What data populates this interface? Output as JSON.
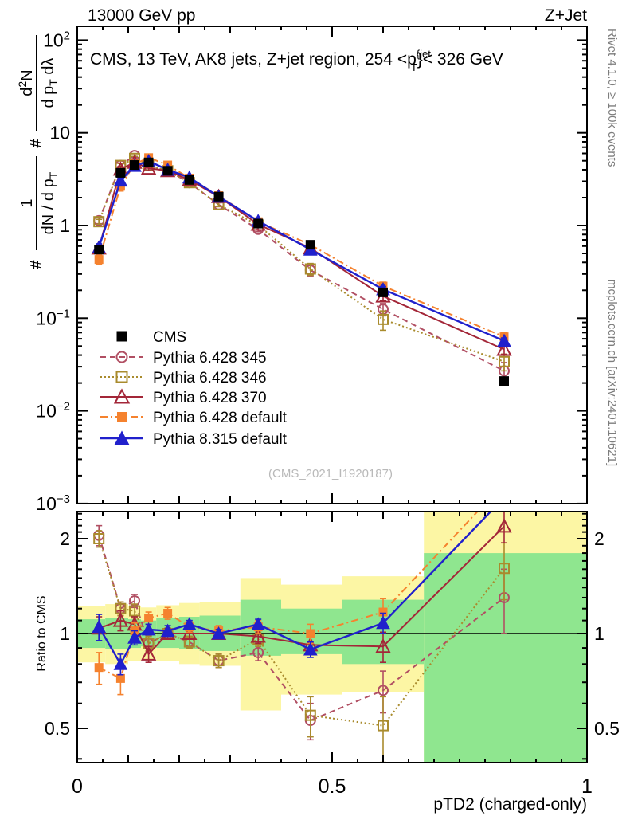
{
  "header": {
    "left": "13000 GeV pp",
    "right": "Z+Jet"
  },
  "panel_title": {
    "prefix": "CMS, 13 TeV, AK8 jets, Z+jet region, 254 <p",
    "sup": "{jet",
    "sub": "T",
    "suffix": "}< 326 GeV"
  },
  "watermark": "(CMS_2021_I1920187)",
  "right_margin": {
    "top": "Rivet 4.1.0, ≥ 100k events",
    "bottom": "mcplots.cern.ch [arXiv:2401.10621]"
  },
  "y_axis_label": {
    "hash1": "#",
    "f1_num": "1",
    "f1_den_main": "dN / d p",
    "f1_den_sub": "T",
    "hash2": "#",
    "f2_num_d": "d",
    "f2_num_exp": "2",
    "f2_num_N": "N",
    "f2_den_main": "d p",
    "f2_den_sub": "T",
    "f2_den_tail": " dλ"
  },
  "main_y_ticks": [
    {
      "v": 100,
      "mant": "10",
      "exp": "2"
    },
    {
      "v": 10,
      "mant": "10",
      "exp": ""
    },
    {
      "v": 1,
      "mant": "1",
      "exp": ""
    },
    {
      "v": 0.1,
      "mant": "10",
      "exp": "−1"
    },
    {
      "v": 0.01,
      "mant": "10",
      "exp": "−2"
    },
    {
      "v": 0.001,
      "mant": "10",
      "exp": "−3"
    }
  ],
  "ratio_y_ticks": [
    {
      "v": 0.5,
      "label": "0.5"
    },
    {
      "v": 1,
      "label": "1"
    },
    {
      "v": 2,
      "label": "2"
    }
  ],
  "x_ticks": [
    {
      "v": 0,
      "label": "0"
    },
    {
      "v": 0.5,
      "label": "0.5"
    },
    {
      "v": 1,
      "label": "1"
    }
  ],
  "chart_data": {
    "type": "line",
    "title": "CMS, 13 TeV, AK8 jets, Z+jet region, 254 < pT{jet} < 326 GeV",
    "xlabel": "pTD2 (charged-only)",
    "ylabel": "# 1/(dN/dpT) # d2N/(dpT dλ)",
    "ratio_ylabel": "Ratio to CMS",
    "xlim": [
      0,
      1
    ],
    "ylim_main": [
      0.001,
      141
    ],
    "ylim_ratio": [
      0.39,
      2.44
    ],
    "x": [
      0.0425,
      0.085,
      0.1125,
      0.14,
      0.1775,
      0.22,
      0.2775,
      0.355,
      0.4575,
      0.6,
      0.8375
    ],
    "series": [
      {
        "name": "CMS",
        "color": "#000000",
        "marker": "square-filled",
        "msize": 12,
        "line": "none",
        "values": [
          0.55,
          3.7,
          4.5,
          4.8,
          3.9,
          3.1,
          2.05,
          1.05,
          0.62,
          0.19,
          0.021
        ],
        "ratio": null,
        "ratio_err": null,
        "rel_err": 0.04
      },
      {
        "name": "Pythia 6.428 345",
        "color": "#b14f63",
        "marker": "circle-open",
        "msize": 12,
        "line": "dashed",
        "values": [
          1.13,
          4.45,
          5.7,
          4.45,
          3.9,
          2.9,
          1.68,
          0.91,
          0.33,
          0.125,
          0.027
        ],
        "ratio": [
          2.05,
          1.2,
          1.27,
          0.93,
          1.0,
          0.94,
          0.82,
          0.87,
          0.53,
          0.66,
          1.3
        ],
        "ratio_err": [
          0.15,
          0.06,
          0.06,
          0.05,
          0.04,
          0.04,
          0.04,
          0.05,
          0.07,
          0.1,
          0.3
        ]
      },
      {
        "name": "Pythia 6.428 346",
        "color": "#a98b2d",
        "marker": "square-open",
        "msize": 12,
        "line": "dotted",
        "values": [
          1.1,
          4.45,
          5.3,
          4.45,
          3.9,
          2.9,
          1.68,
          1.01,
          0.34,
          0.097,
          0.034
        ],
        "ratio": [
          2.0,
          1.2,
          1.18,
          0.93,
          1.0,
          0.94,
          0.82,
          0.96,
          0.55,
          0.51,
          1.61
        ],
        "ratio_err": [
          0.12,
          0.06,
          0.06,
          0.05,
          0.04,
          0.04,
          0.04,
          0.05,
          0.08,
          0.12,
          0.33
        ]
      },
      {
        "name": "Pythia 6.428 370",
        "color": "#a32638",
        "marker": "triangle-open",
        "msize": 14,
        "line": "solid",
        "values": [
          0.57,
          4.05,
          4.8,
          4.15,
          3.9,
          3.1,
          2.05,
          1.03,
          0.57,
          0.173,
          0.046
        ],
        "ratio": [
          1.04,
          1.1,
          1.07,
          0.86,
          1.0,
          1.0,
          1.0,
          0.98,
          0.92,
          0.91,
          2.19
        ],
        "ratio_err": [
          0.09,
          0.08,
          0.06,
          0.05,
          0.04,
          0.04,
          0.04,
          0.05,
          0.06,
          0.1,
          0.25
        ]
      },
      {
        "name": "Pythia 6.428 default",
        "color": "#f5822e",
        "marker": "square-filled",
        "msize": 11,
        "line": "dashdot",
        "values": [
          0.43,
          2.65,
          4.6,
          5.4,
          4.5,
          3.25,
          2.1,
          1.1,
          0.62,
          0.222,
          0.063
        ],
        "ratio": [
          0.78,
          0.72,
          1.02,
          1.12,
          1.16,
          1.05,
          1.02,
          1.05,
          1.0,
          1.17,
          3.0
        ],
        "ratio_err": [
          0.09,
          0.08,
          0.06,
          0.05,
          0.05,
          0.04,
          0.04,
          0.05,
          0.07,
          0.12,
          0.3
        ]
      },
      {
        "name": "Pythia 8.315 default",
        "color": "#2020cc",
        "marker": "triangle-filled",
        "msize": 14,
        "line": "solid",
        "values": [
          0.58,
          3.05,
          4.4,
          4.95,
          4.0,
          3.3,
          2.05,
          1.12,
          0.55,
          0.205,
          0.057
        ],
        "ratio": [
          1.05,
          0.8,
          0.97,
          1.03,
          1.02,
          1.07,
          1.0,
          1.07,
          0.89,
          1.08,
          2.7
        ],
        "ratio_err": [
          0.1,
          0.06,
          0.05,
          0.04,
          0.04,
          0.03,
          0.03,
          0.04,
          0.05,
          0.08,
          0.2
        ]
      }
    ],
    "bands": {
      "colors": {
        "green": "#8fe68f",
        "yellow": "#fcf6a4"
      },
      "segments": [
        [
          0.0,
          0.055,
          0.9,
          1.11,
          0.81,
          1.22
        ],
        [
          0.055,
          0.1,
          0.89,
          1.12,
          0.8,
          1.24
        ],
        [
          0.1,
          0.125,
          0.9,
          1.11,
          0.82,
          1.22
        ],
        [
          0.125,
          0.155,
          0.91,
          1.1,
          0.83,
          1.21
        ],
        [
          0.155,
          0.2,
          0.9,
          1.12,
          0.82,
          1.23
        ],
        [
          0.2,
          0.24,
          0.89,
          1.13,
          0.8,
          1.25
        ],
        [
          0.24,
          0.32,
          0.88,
          1.14,
          0.79,
          1.26
        ],
        [
          0.32,
          0.4,
          0.85,
          1.28,
          0.57,
          1.5
        ],
        [
          0.4,
          0.52,
          0.86,
          1.2,
          0.64,
          1.43
        ],
        [
          0.52,
          0.68,
          0.8,
          1.28,
          0.65,
          1.52
        ],
        [
          0.68,
          1.0,
          0.38,
          1.8,
          0.38,
          2.45
        ]
      ]
    },
    "legend_position": "center-left",
    "grid": false
  }
}
